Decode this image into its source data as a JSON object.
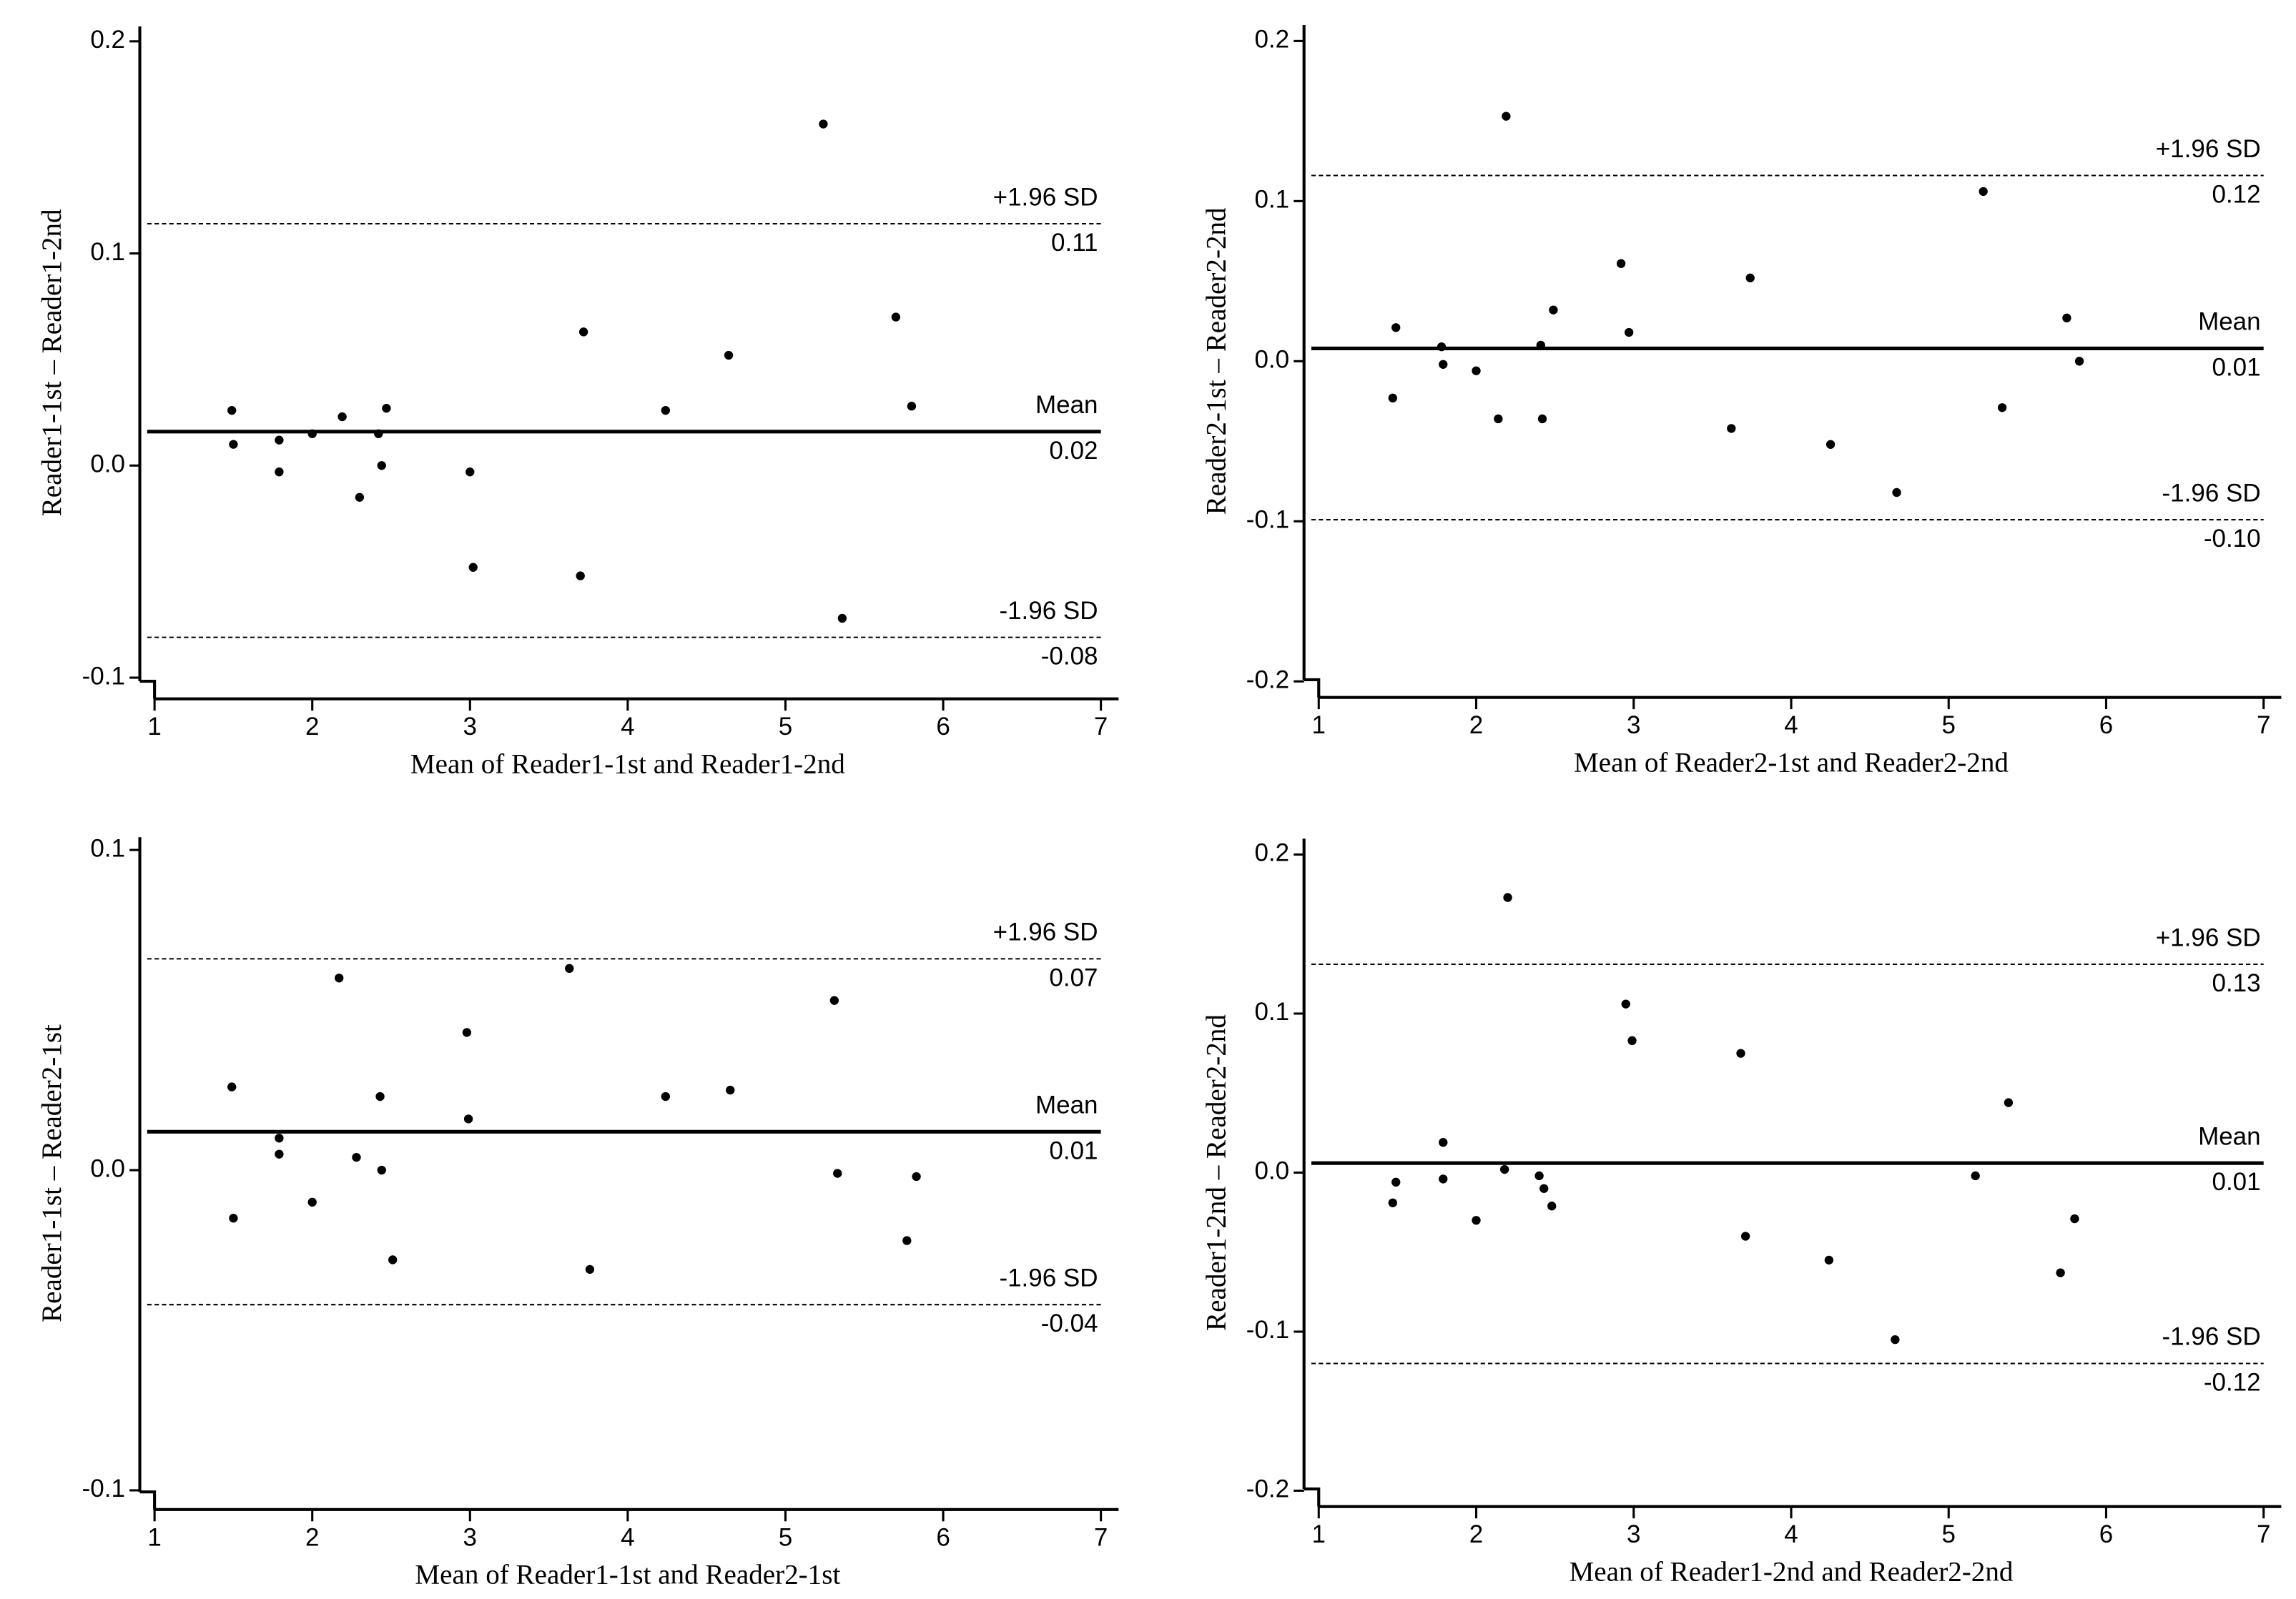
{
  "chart_data": [
    {
      "type": "scatter",
      "xlabel": "Mean of Reader1-1st and Reader1-2nd",
      "ylabel": "Reader1-1st – Reader1-2nd",
      "color": "#000000",
      "x": [
        1.49,
        1.5,
        1.79,
        1.79,
        2.0,
        2.19,
        2.3,
        2.42,
        2.44,
        2.47,
        3.0,
        3.02,
        3.7,
        3.72,
        4.24,
        4.64,
        5.24,
        5.36,
        5.7,
        5.8
      ],
      "values": [
        0.026,
        0.01,
        0.012,
        -0.003,
        0.015,
        0.023,
        -0.015,
        0.015,
        0.0,
        0.027,
        -0.003,
        -0.048,
        -0.052,
        0.063,
        0.026,
        0.052,
        0.161,
        -0.072,
        0.07,
        0.028
      ],
      "xlim": [
        1,
        7
      ],
      "ylim": [
        -0.11,
        0.207
      ],
      "xticks": [
        1,
        2,
        3,
        4,
        5,
        6,
        7
      ],
      "yticks": [
        -0.1,
        {
          "value": 0,
          "label": "0.0"
        },
        0.1,
        0.2
      ],
      "lines": [
        {
          "name": "+1.96 SD",
          "value": 0.114,
          "value_label": "0.11",
          "style": "dashed"
        },
        {
          "name": "Mean",
          "value": 0.016,
          "value_label": "0.02",
          "style": "solid"
        },
        {
          "name": "-1.96 SD",
          "value": -0.081,
          "value_label": "-0.08",
          "style": "dashed"
        }
      ]
    },
    {
      "type": "scatter",
      "xlabel": "Mean of Reader2-1st and Reader2-2nd",
      "ylabel": "Reader2-1st – Reader2-2nd",
      "color": "#000000",
      "x": [
        1.49,
        1.47,
        1.78,
        1.79,
        2.0,
        2.14,
        2.19,
        2.41,
        2.42,
        2.49,
        2.92,
        2.97,
        3.62,
        3.74,
        4.25,
        4.67,
        5.22,
        5.34,
        5.75,
        5.83
      ],
      "values": [
        0.021,
        -0.023,
        0.009,
        -0.002,
        -0.006,
        -0.036,
        0.153,
        0.01,
        -0.036,
        0.032,
        0.061,
        0.018,
        -0.042,
        0.052,
        -0.052,
        -0.082,
        0.106,
        -0.029,
        0.027,
        0.0
      ],
      "xlim": [
        1,
        7
      ],
      "ylim": [
        -0.21,
        0.21
      ],
      "xticks": [
        1,
        2,
        3,
        4,
        5,
        6,
        7
      ],
      "yticks": [
        -0.2,
        -0.1,
        {
          "value": 0,
          "label": "0.0"
        },
        0.1,
        0.2
      ],
      "lines": [
        {
          "name": "+1.96 SD",
          "value": 0.116,
          "value_label": "0.12",
          "style": "dashed"
        },
        {
          "name": "Mean",
          "value": 0.008,
          "value_label": "0.01",
          "style": "solid"
        },
        {
          "name": "-1.96 SD",
          "value": -0.099,
          "value_label": "-0.10",
          "style": "dashed"
        }
      ]
    },
    {
      "type": "scatter",
      "xlabel": "Mean of Reader1-1st and Reader2-1st",
      "ylabel": "Reader1-1st – Reader2-1st",
      "color": "#000000",
      "x": [
        1.49,
        1.5,
        1.79,
        1.79,
        2.0,
        2.17,
        2.28,
        2.43,
        2.44,
        2.51,
        2.98,
        2.99,
        3.63,
        3.76,
        4.24,
        4.65,
        5.31,
        5.33,
        5.77,
        5.83
      ],
      "values": [
        0.026,
        -0.015,
        0.01,
        0.005,
        -0.01,
        0.06,
        0.004,
        0.023,
        0.0,
        -0.028,
        0.043,
        0.016,
        0.063,
        -0.031,
        0.023,
        0.025,
        0.053,
        -0.001,
        -0.022,
        -0.002
      ],
      "xlim": [
        1,
        7
      ],
      "ylim": [
        -0.106,
        0.104
      ],
      "xticks": [
        1,
        2,
        3,
        4,
        5,
        6,
        7
      ],
      "yticks": [
        -0.1,
        {
          "value": 0,
          "label": "0.0"
        },
        0.1
      ],
      "lines": [
        {
          "name": "+1.96 SD",
          "value": 0.066,
          "value_label": "0.07",
          "style": "dashed"
        },
        {
          "name": "Mean",
          "value": 0.012,
          "value_label": "0.01",
          "style": "solid"
        },
        {
          "name": "-1.96 SD",
          "value": -0.042,
          "value_label": "-0.04",
          "style": "dashed"
        }
      ]
    },
    {
      "type": "scatter",
      "xlabel": "Mean of Reader1-2nd and Reader2-2nd",
      "ylabel": "Reader1-2nd – Reader2-2nd",
      "color": "#000000",
      "x": [
        1.49,
        1.47,
        1.79,
        1.79,
        2.0,
        2.18,
        2.2,
        2.4,
        2.43,
        2.48,
        2.95,
        2.99,
        3.68,
        3.71,
        4.24,
        4.66,
        5.17,
        5.38,
        5.71,
        5.8
      ],
      "values": [
        -0.006,
        -0.019,
        0.019,
        -0.004,
        -0.03,
        0.002,
        0.173,
        -0.002,
        -0.01,
        -0.021,
        0.106,
        0.083,
        0.075,
        -0.04,
        -0.055,
        -0.105,
        -0.002,
        0.044,
        -0.063,
        -0.029
      ],
      "xlim": [
        1,
        7
      ],
      "ylim": [
        -0.21,
        0.21
      ],
      "xticks": [
        1,
        2,
        3,
        4,
        5,
        6,
        7
      ],
      "yticks": [
        -0.2,
        -0.1,
        {
          "value": 0,
          "label": "0.0"
        },
        0.1,
        0.2
      ],
      "lines": [
        {
          "name": "+1.96 SD",
          "value": 0.131,
          "value_label": "0.13",
          "style": "dashed"
        },
        {
          "name": "Mean",
          "value": 0.006,
          "value_label": "0.01",
          "style": "solid"
        },
        {
          "name": "-1.96 SD",
          "value": -0.12,
          "value_label": "-0.12",
          "style": "dashed"
        }
      ]
    }
  ]
}
